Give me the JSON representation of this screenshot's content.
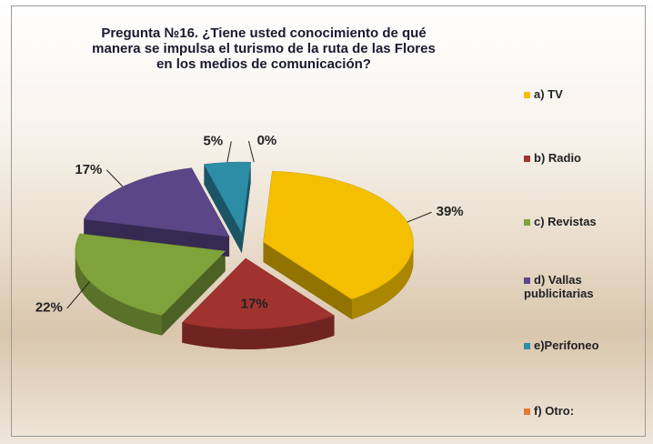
{
  "chart_data": {
    "type": "pie",
    "title": "Pregunta №16.  ¿Tiene usted conocimiento de qué manera se impulsa el turismo de la ruta de las Flores en los medios de comunicación?",
    "categories": [
      "a) TV",
      "b) Radio",
      "c) Revistas",
      "d) Vallas publicitarias",
      "e)Perifoneo",
      "f) Otro:"
    ],
    "values": [
      39,
      17,
      22,
      17,
      5,
      0
    ],
    "value_labels": [
      "39%",
      "17%",
      "22%",
      "17%",
      "5%",
      "0%"
    ],
    "colors": [
      "#f4bf00",
      "#a0332f",
      "#7fa23a",
      "#5b4688",
      "#2d8ca6",
      "#e07a30"
    ],
    "legend": "right"
  }
}
